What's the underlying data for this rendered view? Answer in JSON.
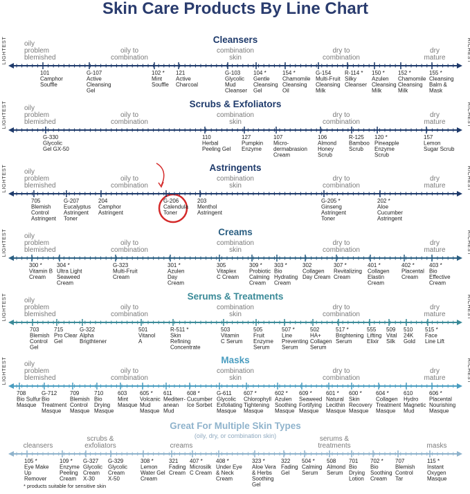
{
  "title": "Skin Care Products By Line Chart",
  "sections": [
    {
      "title": "Cleansers",
      "start_label": "LIGHTEST",
      "end_label": "RICHEST",
      "scale_labels": [
        [
          "oily",
          "problem",
          "blemished"
        ],
        [
          "oily to",
          "combination"
        ],
        [
          "combination",
          "skin"
        ],
        [
          "dry to",
          "combination"
        ],
        [
          "dry",
          "mature"
        ]
      ],
      "products": [
        [
          "101",
          "Camphor",
          "Souffle"
        ],
        [
          "G-107",
          "Active",
          "Cleansing",
          "Gel"
        ],
        [
          "102 *",
          "Mint",
          "Souffle"
        ],
        [
          "121",
          "Active",
          "Charcoal"
        ],
        [
          "G-103",
          "Glycolic",
          "Mud",
          "Cleanser"
        ],
        [
          "104 *",
          "Gentle",
          "Cleansing",
          "Gel"
        ],
        [
          "154 *",
          "Chamomile",
          "Cleansing",
          "Oil"
        ],
        [
          "G-154",
          "Multi-Fruit",
          "Cleansing",
          "Milk"
        ],
        [
          "R-114 *",
          "Silky",
          "Cleanser"
        ],
        [
          "150 *",
          "Azulen",
          "Cleansing",
          "Milk"
        ],
        [
          "152 *",
          "Chamomile",
          "Cleansing",
          "Milk"
        ],
        [
          "155 *",
          "Cleansing",
          "Balm &",
          "Mask"
        ]
      ]
    },
    {
      "title": "Scrubs & Exfoliators",
      "start_label": "LIGHTEST",
      "end_label": "RICHEST",
      "scale_labels": [
        [
          "oily",
          "problem",
          "blemished"
        ],
        [
          "oily to",
          "combination"
        ],
        [
          "combination",
          "skin"
        ],
        [
          "dry to",
          "combination"
        ],
        [
          "dry",
          "mature"
        ]
      ],
      "products": [
        [
          "G-330",
          "Glycolic",
          "Gel GX-50"
        ],
        [
          "110",
          "Herbal",
          "Peeling Gel"
        ],
        [
          "127",
          "Pumpkin",
          "Enzyme"
        ],
        [
          "107",
          "Micro-",
          "dermabrasion",
          "Cream"
        ],
        [
          "106",
          "Almond",
          "Honey",
          "Scrub"
        ],
        [
          "R-125",
          "Bamboo",
          "Scrub"
        ],
        [
          "120 *",
          "Pineapple",
          "Enzyme",
          "Scrub"
        ],
        [
          "157",
          "Lemon",
          "Sugar Scrub"
        ]
      ]
    },
    {
      "title": "Astringents",
      "start_label": "LIGHTEST",
      "end_label": "RICHEST",
      "scale_labels": [
        [
          "oily",
          "problem",
          "blemished"
        ],
        [
          "oily to",
          "combination"
        ],
        [
          "combination",
          "skin"
        ],
        [
          "dry to",
          "combination"
        ],
        [
          "dry",
          "mature"
        ]
      ],
      "products": [
        [
          "705",
          "Blemish",
          "Control",
          "Astringent"
        ],
        [
          "G-207",
          "Eucalyptus",
          "Astringent",
          "Toner"
        ],
        [
          "204",
          "Camphor",
          "Astringent"
        ],
        [
          "G-206",
          "Calendula",
          "Toner"
        ],
        [
          "203",
          "Menthol",
          "Astringent"
        ],
        [
          "G-205 *",
          "Ginseng",
          "Astringent",
          "Toner"
        ],
        [
          "202 *",
          "Aloe",
          "Cucumber",
          "Astringent"
        ]
      ]
    },
    {
      "title": "Creams",
      "start_label": "LIGHTEST",
      "end_label": "RICHEST",
      "scale_labels": [
        [
          "oily",
          "problem",
          "blemished"
        ],
        [
          "oily to",
          "combination"
        ],
        [
          "combination",
          "skin"
        ],
        [
          "dry to",
          "combination"
        ],
        [
          "dry",
          "mature"
        ]
      ],
      "products": [
        [
          "300 *",
          "Vitamin B",
          "Cream"
        ],
        [
          "304 *",
          "Ultra Light",
          "Seaweed",
          "Cream"
        ],
        [
          "G-323",
          "Multi-Fruit",
          "Cream"
        ],
        [
          "301 *",
          "Azulen",
          "Day",
          "Cream"
        ],
        [
          "305",
          "Vitaplex",
          "C Cream"
        ],
        [
          "309 *",
          "Probiotic",
          "Calming",
          "Cream"
        ],
        [
          "303 *",
          "Bio",
          "Hydrating",
          "Cream"
        ],
        [
          "302",
          "Collagen",
          "Day Cream"
        ],
        [
          "307 *",
          "Revitalizing",
          "Cream"
        ],
        [
          "401 *",
          "Collagen",
          "Elastin",
          "Cream"
        ],
        [
          "402 *",
          "Placental",
          "Cream"
        ],
        [
          "403 *",
          "Bio",
          "Effective",
          "Cream"
        ]
      ]
    },
    {
      "title": "Serums & Treatments",
      "start_label": "LIGHTEST",
      "end_label": "RICHEST",
      "scale_labels": [
        [
          "oily",
          "problem",
          "blemished"
        ],
        [
          "oily to",
          "combination"
        ],
        [
          "combination",
          "skin"
        ],
        [
          "dry to",
          "combination"
        ],
        [
          "dry",
          "mature"
        ]
      ],
      "products": [
        [
          "703",
          "Blemish",
          "Control",
          "Gel"
        ],
        [
          "715",
          "Pro Clear",
          "Gel"
        ],
        [
          "G-322",
          "Alpha",
          "Brigthtener"
        ],
        [
          "501",
          "Vitanol",
          "A"
        ],
        [
          "R-511 *",
          "Skin",
          "Refining",
          "Concentrate"
        ],
        [
          "503",
          "Vitamin",
          "C Serum"
        ],
        [
          "505",
          "Fruit",
          "Enzyme",
          "Serum"
        ],
        [
          "507 *",
          "Line",
          "Preventing",
          "Serum"
        ],
        [
          "502",
          "HA+",
          "Collagen",
          "Serum"
        ],
        [
          "517 *",
          "Brightening",
          "Serum"
        ],
        [
          "555",
          "Lifting",
          "Elixir"
        ],
        [
          "509",
          "Vital",
          "Silk"
        ],
        [
          "510",
          "24K",
          "Gold"
        ],
        [
          "515 *",
          "Face",
          "Line Lift"
        ]
      ]
    },
    {
      "title": "Masks",
      "start_label": "LIGHTEST",
      "end_label": "RICHEST",
      "scale_labels": [
        [
          "oily",
          "problem",
          "blemished"
        ],
        [
          "oily to",
          "combination"
        ],
        [
          "combination",
          "skin"
        ],
        [
          "dry to",
          "combination"
        ],
        [
          "dry",
          "mature"
        ]
      ],
      "products": [
        [
          "708",
          "Bio Sulfur",
          "Masque"
        ],
        [
          "G-712",
          "Bio",
          "Treatment",
          "Masque"
        ],
        [
          "709",
          "Blemish",
          "Control",
          "Masque"
        ],
        [
          "710",
          "Bio",
          "Drying",
          "Masque"
        ],
        [
          "603",
          "Mint",
          "Masque"
        ],
        [
          "605 *",
          "Volcanic",
          "Mud",
          "Masque"
        ],
        [
          "611",
          "Mediterr-",
          "anean",
          "Mud"
        ],
        [
          "608 *",
          "Cucumber",
          "Ice Sorbet"
        ],
        [
          "G-611",
          "Glycolic",
          "Exfoliating",
          "Masque"
        ],
        [
          "607 *",
          "Chlorophyll",
          "Tightening",
          "Masque"
        ],
        [
          "602 *",
          "Azulen",
          "Soothing",
          "Masque"
        ],
        [
          "609 *",
          "Seaweed",
          "Fortifying",
          "Masque"
        ],
        [
          "601 *",
          "Natural",
          "Lecithin",
          "Masque"
        ],
        [
          "600 *",
          "Skin",
          "Recovery",
          "Masque"
        ],
        [
          "604 *",
          "Collagen",
          "Treatment",
          "Masque"
        ],
        [
          "610",
          "Hydro",
          "Magnetic",
          "Mud"
        ],
        [
          "606 *",
          "Placental",
          "Nourishing",
          "Masque"
        ]
      ]
    },
    {
      "title": "Great For Multiple Skin Types",
      "subtitle": "(oily, dry, or combination skin)",
      "scale_labels": [
        [
          "cleansers"
        ],
        [
          "scrubs &",
          "exfoliators"
        ],
        [
          "creams"
        ],
        [
          "serums &",
          "treatments"
        ],
        [
          "masks"
        ]
      ],
      "products": [
        [
          "105 *",
          "Eye Make",
          "Up",
          "Remover"
        ],
        [
          "109 *",
          "Enzyme",
          "Peeling",
          "Cream"
        ],
        [
          "G-327",
          "Glycolic",
          "Cream",
          "X-30"
        ],
        [
          "G-329",
          "Glycolic",
          "Cream",
          "X-50"
        ],
        [
          "308 *",
          "Lemon",
          "Water Gel",
          "Cream"
        ],
        [
          "321",
          "Fading",
          "Cream"
        ],
        [
          "407 *",
          "Microsilk",
          "C Cream"
        ],
        [
          "408 *",
          "Under Eye",
          "& Neck",
          "Cream"
        ],
        [
          "323 *",
          "Aloe Vera",
          "& Herbs",
          "Soothing",
          "Gel"
        ],
        [
          "322",
          "Fading",
          "Gel"
        ],
        [
          "504 *",
          "Calming",
          "Serum"
        ],
        [
          "508",
          "Almond",
          "Serum"
        ],
        [
          "701",
          "Bio",
          "Drying",
          "Lotion"
        ],
        [
          "702 *",
          "Bio",
          "Soothing",
          "Cream"
        ],
        [
          "707",
          "Blemish",
          "Control",
          "Tar"
        ],
        [
          "115 *",
          "Instant",
          "Oxygen",
          "Masque"
        ]
      ]
    }
  ],
  "footnote": "* products suitable for sensitive skin"
}
